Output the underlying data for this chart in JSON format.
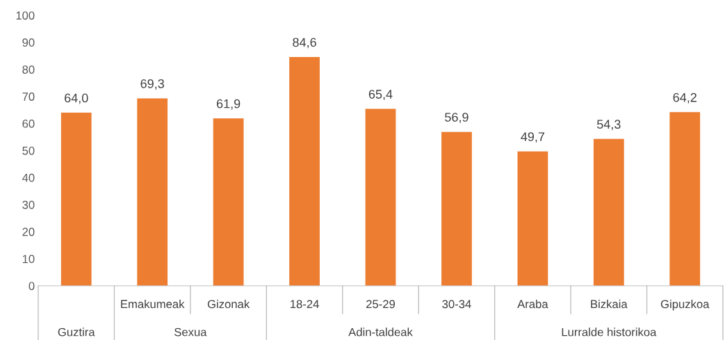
{
  "chart_data": {
    "type": "bar",
    "categories": [
      null,
      "Emakumeak",
      "Gizonak",
      "18-24",
      "25-29",
      "30-34",
      "Araba",
      "Bizkaia",
      "Gipuzkoa"
    ],
    "values": [
      64.0,
      69.3,
      61.9,
      84.6,
      65.4,
      56.9,
      49.7,
      54.3,
      64.2
    ],
    "value_labels": [
      "64,0",
      "69,3",
      "61,9",
      "84,6",
      "65,4",
      "56,9",
      "49,7",
      "54,3",
      "64,2"
    ],
    "color": "#ed7d31",
    "ylim": [
      0,
      100
    ],
    "yticks": [
      0,
      10,
      20,
      30,
      40,
      50,
      60,
      70,
      80,
      90,
      100
    ],
    "grid": false,
    "legend": false,
    "annotations": [
      "Guztira",
      "Sexua",
      "Adin-taldeak",
      "Lurralde historikoa"
    ]
  }
}
